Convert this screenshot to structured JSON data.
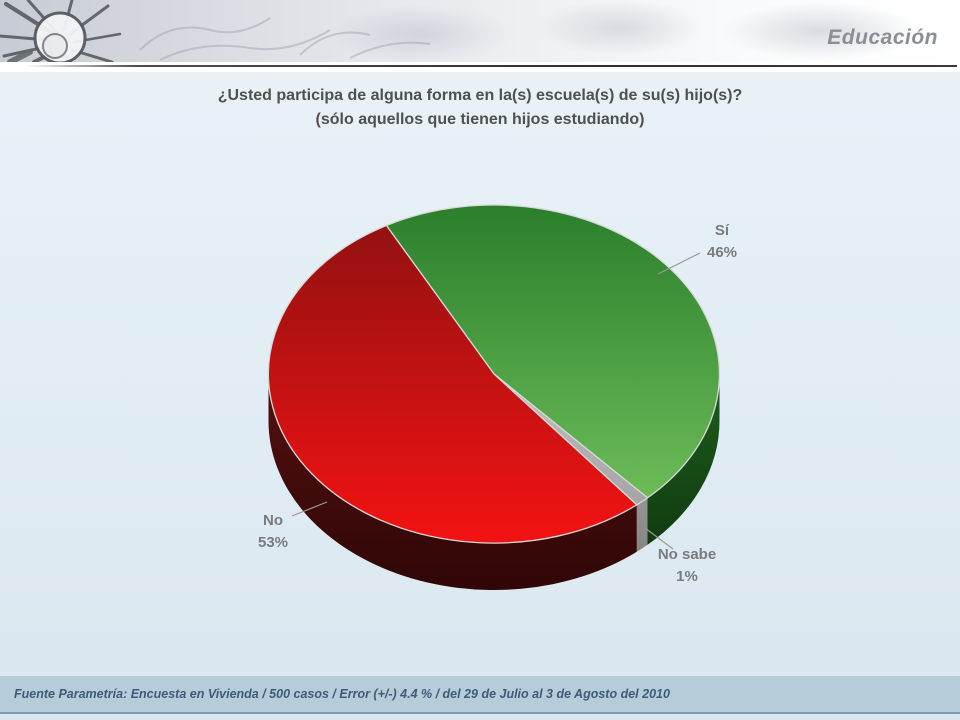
{
  "header": {
    "section_title": "Educación"
  },
  "title": {
    "line1": "¿Usted participa de alguna forma en la(s) escuela(s) de su(s) hijo(s)?",
    "line2": "(sólo aquellos que tienen hijos estudiando)"
  },
  "chart_data": {
    "type": "pie",
    "style": "3d",
    "title": "¿Usted participa de alguna forma en la(s) escuela(s) de su(s) hijo(s)? (sólo aquellos que tienen hijos estudiando)",
    "start_angle_deg": -28.5,
    "legend_position": "none",
    "slices": [
      {
        "label": "Sí",
        "value": 46,
        "pct_label": "46%",
        "color_top": "#2b7f2b",
        "color_bottom": "#76c560",
        "side_top": "#1d5e1d",
        "side_bottom": "#0d320d"
      },
      {
        "label": "No sabe",
        "value": 1,
        "pct_label": "1%",
        "color_top": "#e6e6e6",
        "color_bottom": "#9c9c9c",
        "side_top": "#bdbdbd",
        "side_bottom": "#787878"
      },
      {
        "label": "No",
        "value": 53,
        "pct_label": "53%",
        "color_top": "#8e1111",
        "color_bottom": "#f31212",
        "side_top": "#541010",
        "side_bottom": "#300606"
      }
    ]
  },
  "footer": {
    "source": "Fuente Parametría: Encuesta en Vivienda /  500 casos / Error (+/-) 4.4 % / del 29 de Julio al 3 de Agosto del 2010"
  }
}
